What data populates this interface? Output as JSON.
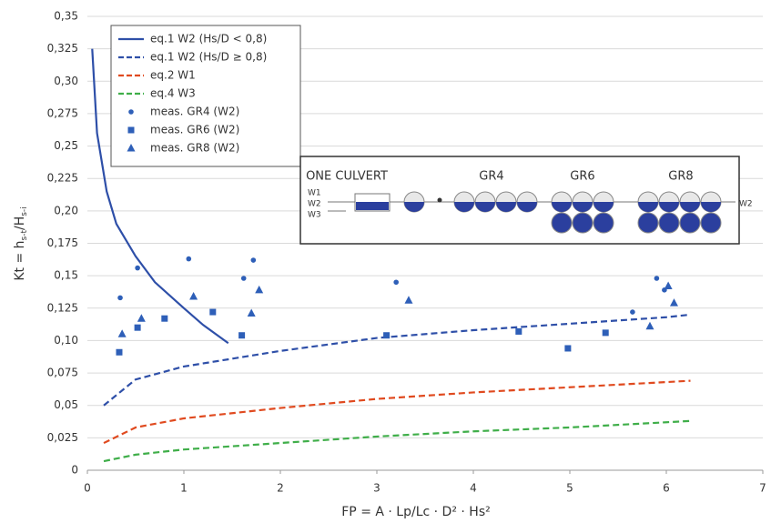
{
  "chart_data": {
    "type": "scatter",
    "xlabel": "FP = A · Lp/Lc · D² · Hs²",
    "ylabel": [
      "Kt = h",
      "s-t",
      "/H",
      "s-i"
    ],
    "xlim": [
      0,
      7
    ],
    "ylim": [
      0,
      0.35
    ],
    "xticks": [
      0,
      1,
      2,
      3,
      4,
      5,
      6,
      7
    ],
    "yticks": [
      0,
      {
        "value": 0.025,
        "label": "0,025"
      },
      {
        "value": 0.05,
        "label": "0,05"
      },
      {
        "value": 0.075,
        "label": "0,075"
      },
      {
        "value": 0.1,
        "label": "0,10"
      },
      {
        "value": 0.125,
        "label": "0,125"
      },
      {
        "value": 0.15,
        "label": "0,15"
      },
      {
        "value": 0.175,
        "label": "0,175"
      },
      {
        "value": 0.2,
        "label": "0,20"
      },
      {
        "value": 0.225,
        "label": "0,225"
      },
      {
        "value": 0.25,
        "label": "0,25"
      },
      {
        "value": 0.275,
        "label": "0,275"
      },
      {
        "value": 0.3,
        "label": "0,30"
      },
      {
        "value": 0.325,
        "label": "0,325"
      },
      {
        "value": 0.35,
        "label": "0,35"
      }
    ],
    "grid": true,
    "legend": "upper left",
    "series": [
      {
        "name": "eq.1 W2 (Hs/D < 0,8)",
        "color": "#2e4fa8",
        "line": "solid",
        "x": [
          0.05,
          0.1,
          0.2,
          0.3,
          0.5,
          0.7,
          1.0,
          1.2,
          1.46
        ],
        "values": [
          0.325,
          0.26,
          0.215,
          0.19,
          0.165,
          0.145,
          0.125,
          0.112,
          0.098
        ]
      },
      {
        "name": "eq.1 W2 (Hs/D ≥ 0,8)",
        "color": "#2e4fa8",
        "line": "dashed",
        "x": [
          0.17,
          0.5,
          1,
          2,
          3,
          4,
          5,
          6,
          6.25
        ],
        "values": [
          0.05,
          0.07,
          0.08,
          0.092,
          0.102,
          0.108,
          0.113,
          0.118,
          0.12
        ]
      },
      {
        "name": "eq.2 W1",
        "color": "#e04a1f",
        "line": "dashed",
        "x": [
          0.17,
          0.5,
          1,
          2,
          3,
          4,
          5,
          6,
          6.25
        ],
        "values": [
          0.021,
          0.033,
          0.04,
          0.048,
          0.055,
          0.06,
          0.064,
          0.068,
          0.069
        ]
      },
      {
        "name": "eq.4 W3",
        "color": "#3fae49",
        "line": "dashed",
        "x": [
          0.17,
          0.5,
          1,
          2,
          3,
          4,
          5,
          6,
          6.25
        ],
        "values": [
          0.007,
          0.012,
          0.016,
          0.021,
          0.026,
          0.03,
          0.033,
          0.037,
          0.038
        ]
      },
      {
        "name": "meas. GR4 (W2)",
        "color": "#2e5fb8",
        "marker": "circle",
        "x": [
          0.34,
          0.52,
          1.05,
          1.62,
          1.72,
          3.2,
          5.65,
          5.9,
          5.98
        ],
        "values": [
          0.133,
          0.156,
          0.163,
          0.148,
          0.162,
          0.145,
          0.122,
          0.148,
          0.139
        ]
      },
      {
        "name": "meas. GR6 (W2)",
        "color": "#2e5fb8",
        "marker": "square",
        "x": [
          0.33,
          0.52,
          0.8,
          1.3,
          1.6,
          3.1,
          4.47,
          4.98,
          5.37
        ],
        "values": [
          0.091,
          0.11,
          0.117,
          0.122,
          0.104,
          0.104,
          0.107,
          0.094,
          0.106
        ]
      },
      {
        "name": "meas. GR8 (W2)",
        "color": "#2e5fb8",
        "marker": "triangle",
        "x": [
          0.36,
          0.56,
          1.1,
          1.7,
          1.78,
          3.33,
          5.83,
          6.02,
          6.08
        ],
        "values": [
          0.105,
          0.117,
          0.134,
          0.121,
          0.139,
          0.131,
          0.111,
          0.142,
          0.129
        ]
      }
    ],
    "inset_labels": [
      "ONE CULVERT",
      "GR4",
      "GR6",
      "GR8",
      "W1",
      "W2",
      "W3",
      "W2"
    ]
  }
}
